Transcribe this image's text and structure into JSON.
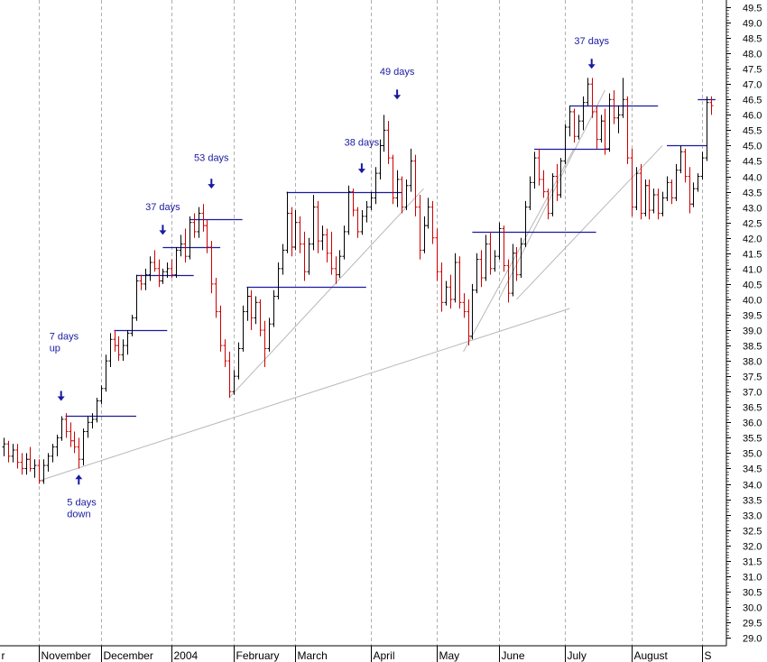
{
  "chart_data": {
    "type": "ohlc",
    "colors": {
      "up": "#000000",
      "down": "#cc0000",
      "level": "#1a1aa0",
      "trend": "#b8b8b8",
      "grid": "#b0b0b0",
      "annotation": "#1a1aa0"
    },
    "y_axis": {
      "position": "right",
      "range": [
        29.0,
        49.5
      ],
      "ticks": [
        "49.5",
        "49.0",
        "48.5",
        "48.0",
        "47.5",
        "47.0",
        "46.5",
        "46.0",
        "45.5",
        "45.0",
        "44.5",
        "44.0",
        "43.5",
        "43.0",
        "42.5",
        "42.0",
        "41.5",
        "41.0",
        "40.5",
        "40.0",
        "39.5",
        "39.0",
        "38.5",
        "38.0",
        "37.5",
        "37.0",
        "36.5",
        "36.0",
        "35.5",
        "35.0",
        "34.5",
        "34.0",
        "33.5",
        "33.0",
        "32.5",
        "32.0",
        "31.5",
        "31.0",
        "30.5",
        "30.0",
        "29.5",
        "29.0"
      ]
    },
    "x_axis": {
      "labels": [
        {
          "label": "r",
          "bar": -1
        },
        {
          "label": "November",
          "bar": 8
        },
        {
          "label": "December",
          "bar": 22
        },
        {
          "label": "2004",
          "bar": 38
        },
        {
          "label": "February",
          "bar": 52
        },
        {
          "label": "March",
          "bar": 66
        },
        {
          "label": "April",
          "bar": 83
        },
        {
          "label": "May",
          "bar": 98
        },
        {
          "label": "June",
          "bar": 112
        },
        {
          "label": "July",
          "bar": 127
        },
        {
          "label": "August",
          "bar": 142
        },
        {
          "label": "S",
          "bar": 158
        }
      ],
      "gridlines_at_bars": [
        8,
        22,
        38,
        52,
        66,
        83,
        98,
        112,
        127,
        142,
        158
      ]
    },
    "grid": true,
    "bars": [
      [
        35.2,
        35.5,
        34.9,
        35.3
      ],
      [
        35.3,
        35.4,
        34.7,
        34.9
      ],
      [
        34.9,
        35.3,
        34.7,
        35.1
      ],
      [
        35.1,
        35.3,
        34.5,
        34.7
      ],
      [
        34.7,
        35.0,
        34.3,
        34.5
      ],
      [
        34.5,
        35.0,
        34.3,
        34.8
      ],
      [
        34.8,
        35.2,
        34.4,
        34.5
      ],
      [
        34.5,
        34.8,
        34.2,
        34.6
      ],
      [
        34.6,
        34.8,
        34.0,
        34.1
      ],
      [
        34.1,
        34.8,
        34.0,
        34.6
      ],
      [
        34.6,
        35.0,
        34.4,
        34.9
      ],
      [
        34.9,
        35.3,
        34.7,
        35.2
      ],
      [
        35.2,
        35.6,
        34.9,
        35.5
      ],
      [
        35.5,
        36.2,
        35.4,
        36.1
      ],
      [
        36.1,
        36.3,
        35.5,
        35.7
      ],
      [
        35.7,
        36.0,
        35.2,
        35.4
      ],
      [
        35.4,
        35.7,
        35.0,
        35.2
      ],
      [
        35.2,
        35.5,
        34.5,
        34.8
      ],
      [
        34.8,
        35.8,
        34.6,
        35.7
      ],
      [
        35.7,
        36.2,
        35.5,
        36.0
      ],
      [
        36.0,
        36.3,
        35.8,
        36.1
      ],
      [
        36.1,
        36.8,
        36.0,
        36.7
      ],
      [
        36.7,
        37.2,
        36.6,
        37.1
      ],
      [
        37.1,
        38.2,
        37.0,
        38.0
      ],
      [
        38.0,
        38.9,
        37.8,
        38.7
      ],
      [
        38.7,
        39.0,
        38.3,
        38.5
      ],
      [
        38.5,
        38.8,
        38.0,
        38.2
      ],
      [
        38.2,
        38.7,
        38.0,
        38.5
      ],
      [
        38.5,
        39.0,
        38.2,
        38.9
      ],
      [
        38.9,
        39.5,
        38.8,
        39.4
      ],
      [
        39.4,
        40.8,
        39.3,
        40.6
      ],
      [
        40.6,
        40.8,
        40.3,
        40.5
      ],
      [
        40.5,
        41.0,
        40.3,
        40.8
      ],
      [
        40.8,
        41.4,
        40.6,
        41.2
      ],
      [
        41.2,
        41.6,
        40.9,
        41.0
      ],
      [
        41.0,
        41.3,
        40.4,
        40.6
      ],
      [
        40.6,
        41.0,
        40.5,
        40.9
      ],
      [
        40.9,
        41.2,
        40.7,
        41.0
      ],
      [
        41.0,
        41.3,
        40.7,
        40.8
      ],
      [
        40.8,
        41.7,
        40.7,
        41.6
      ],
      [
        41.6,
        42.1,
        41.4,
        41.8
      ],
      [
        41.8,
        42.3,
        41.2,
        41.4
      ],
      [
        41.4,
        42.7,
        41.3,
        42.5
      ],
      [
        42.5,
        42.8,
        42.0,
        42.2
      ],
      [
        42.2,
        43.0,
        42.0,
        42.8
      ],
      [
        42.8,
        43.1,
        42.2,
        42.4
      ],
      [
        42.4,
        42.6,
        41.5,
        41.7
      ],
      [
        41.7,
        41.9,
        40.2,
        40.5
      ],
      [
        40.5,
        40.7,
        39.4,
        39.6
      ],
      [
        39.6,
        39.8,
        38.3,
        38.5
      ],
      [
        38.5,
        38.7,
        37.8,
        38.0
      ],
      [
        38.0,
        38.3,
        36.8,
        37.0
      ],
      [
        37.0,
        37.7,
        36.9,
        37.5
      ],
      [
        37.5,
        38.6,
        37.4,
        38.4
      ],
      [
        38.4,
        39.8,
        38.3,
        39.6
      ],
      [
        39.6,
        40.4,
        39.3,
        40.1
      ],
      [
        40.1,
        40.3,
        39.0,
        39.4
      ],
      [
        39.4,
        40.1,
        39.2,
        39.9
      ],
      [
        39.9,
        40.0,
        38.8,
        39.0
      ],
      [
        39.0,
        39.3,
        37.8,
        38.4
      ],
      [
        38.4,
        39.4,
        38.3,
        39.2
      ],
      [
        39.2,
        40.3,
        39.1,
        40.1
      ],
      [
        40.1,
        41.2,
        40.0,
        41.0
      ],
      [
        41.0,
        41.8,
        40.8,
        41.6
      ],
      [
        41.6,
        43.5,
        41.5,
        42.8
      ],
      [
        42.8,
        43.0,
        41.4,
        41.7
      ],
      [
        41.7,
        42.9,
        41.6,
        42.5
      ],
      [
        42.5,
        42.7,
        41.5,
        41.8
      ],
      [
        41.8,
        42.2,
        40.6,
        40.9
      ],
      [
        40.9,
        42.0,
        40.8,
        41.8
      ],
      [
        41.8,
        43.4,
        41.6,
        43.0
      ],
      [
        43.0,
        43.2,
        41.5,
        41.9
      ],
      [
        41.9,
        42.4,
        41.6,
        42.1
      ],
      [
        42.1,
        42.3,
        41.2,
        41.5
      ],
      [
        41.5,
        42.2,
        40.8,
        41.0
      ],
      [
        41.0,
        41.4,
        40.5,
        40.8
      ],
      [
        40.8,
        41.6,
        40.7,
        41.4
      ],
      [
        41.4,
        42.4,
        41.3,
        42.2
      ],
      [
        42.2,
        43.7,
        42.1,
        43.5
      ],
      [
        43.5,
        43.6,
        42.7,
        42.9
      ],
      [
        42.9,
        43.0,
        42.0,
        42.2
      ],
      [
        42.2,
        42.9,
        42.1,
        42.7
      ],
      [
        42.7,
        43.2,
        42.5,
        43.0
      ],
      [
        43.0,
        43.5,
        42.9,
        43.3
      ],
      [
        43.3,
        44.3,
        43.1,
        44.1
      ],
      [
        44.1,
        45.2,
        43.9,
        45.0
      ],
      [
        45.0,
        46.0,
        44.8,
        45.5
      ],
      [
        45.5,
        45.8,
        44.4,
        44.6
      ],
      [
        44.6,
        44.7,
        43.1,
        43.3
      ],
      [
        43.3,
        44.2,
        43.0,
        43.9
      ],
      [
        43.9,
        44.0,
        42.8,
        43.0
      ],
      [
        43.0,
        43.9,
        42.9,
        43.7
      ],
      [
        43.7,
        44.9,
        43.5,
        44.5
      ],
      [
        44.5,
        44.7,
        42.7,
        43.0
      ],
      [
        43.0,
        43.4,
        41.3,
        41.6
      ],
      [
        41.6,
        42.7,
        41.5,
        42.4
      ],
      [
        42.4,
        43.3,
        42.3,
        43.0
      ],
      [
        43.0,
        43.2,
        41.8,
        42.0
      ],
      [
        42.0,
        42.3,
        40.6,
        40.9
      ],
      [
        40.9,
        41.2,
        39.6,
        39.9
      ],
      [
        39.9,
        40.6,
        39.8,
        40.4
      ],
      [
        40.4,
        40.8,
        39.7,
        40.0
      ],
      [
        40.0,
        41.5,
        39.9,
        41.2
      ],
      [
        41.2,
        41.4,
        39.7,
        39.9
      ],
      [
        39.9,
        40.2,
        39.4,
        39.6
      ],
      [
        39.6,
        40.0,
        38.5,
        38.8
      ],
      [
        38.8,
        40.5,
        38.7,
        40.3
      ],
      [
        40.3,
        41.5,
        40.2,
        41.3
      ],
      [
        41.3,
        41.6,
        40.4,
        40.7
      ],
      [
        40.7,
        42.1,
        40.6,
        41.8
      ],
      [
        41.8,
        42.2,
        40.8,
        41.0
      ],
      [
        41.0,
        41.6,
        40.9,
        41.4
      ],
      [
        41.4,
        42.5,
        41.3,
        42.3
      ],
      [
        42.3,
        42.4,
        40.9,
        41.1
      ],
      [
        41.1,
        41.3,
        39.9,
        40.2
      ],
      [
        40.2,
        41.8,
        40.1,
        41.5
      ],
      [
        41.5,
        41.7,
        40.6,
        40.8
      ],
      [
        40.8,
        42.0,
        40.7,
        41.8
      ],
      [
        41.8,
        43.2,
        41.7,
        43.0
      ],
      [
        43.0,
        44.0,
        42.9,
        43.8
      ],
      [
        43.8,
        44.8,
        43.6,
        44.6
      ],
      [
        44.6,
        44.9,
        43.7,
        43.9
      ],
      [
        43.9,
        44.2,
        43.3,
        43.5
      ],
      [
        43.5,
        43.6,
        42.6,
        42.8
      ],
      [
        42.8,
        44.1,
        42.7,
        44.0
      ],
      [
        44.0,
        44.4,
        43.2,
        43.4
      ],
      [
        43.4,
        44.6,
        43.3,
        44.5
      ],
      [
        44.5,
        45.7,
        44.4,
        45.6
      ],
      [
        45.6,
        46.3,
        45.3,
        46.1
      ],
      [
        46.1,
        46.2,
        45.1,
        45.3
      ],
      [
        45.3,
        46.0,
        45.2,
        45.8
      ],
      [
        45.8,
        46.6,
        45.5,
        46.4
      ],
      [
        46.4,
        47.2,
        46.3,
        47.0
      ],
      [
        47.0,
        47.2,
        45.9,
        46.1
      ],
      [
        46.1,
        46.3,
        44.9,
        45.2
      ],
      [
        45.2,
        46.0,
        45.1,
        45.8
      ],
      [
        45.8,
        46.2,
        44.7,
        44.9
      ],
      [
        44.9,
        46.7,
        44.8,
        46.5
      ],
      [
        46.5,
        46.8,
        45.7,
        45.9
      ],
      [
        45.9,
        46.3,
        45.4,
        46.0
      ],
      [
        46.0,
        47.2,
        45.9,
        46.5
      ],
      [
        46.5,
        46.6,
        44.4,
        44.6
      ],
      [
        44.6,
        44.9,
        42.7,
        43.0
      ],
      [
        43.0,
        44.3,
        42.9,
        44.1
      ],
      [
        44.1,
        44.4,
        42.6,
        42.8
      ],
      [
        42.8,
        43.9,
        42.7,
        43.7
      ],
      [
        43.7,
        43.9,
        42.6,
        42.9
      ],
      [
        42.9,
        43.6,
        42.8,
        43.4
      ],
      [
        43.4,
        43.6,
        42.6,
        42.8
      ],
      [
        42.8,
        43.5,
        42.7,
        43.3
      ],
      [
        43.3,
        44.0,
        43.2,
        43.8
      ],
      [
        43.8,
        43.9,
        43.1,
        43.3
      ],
      [
        43.3,
        44.4,
        43.2,
        44.2
      ],
      [
        44.2,
        45.0,
        44.1,
        44.8
      ],
      [
        44.8,
        44.9,
        43.8,
        44.0
      ],
      [
        44.0,
        44.3,
        42.8,
        43.1
      ],
      [
        43.1,
        43.8,
        43.0,
        43.6
      ],
      [
        43.6,
        44.1,
        43.5,
        44.0
      ],
      [
        44.0,
        44.8,
        43.9,
        44.6
      ],
      [
        44.6,
        46.6,
        44.5,
        46.4
      ],
      [
        46.4,
        46.6,
        46.0,
        46.3
      ]
    ],
    "levels": [
      {
        "from_bar": 14,
        "to_bar": 30,
        "price": 36.2
      },
      {
        "from_bar": 25,
        "to_bar": 37,
        "price": 39.0
      },
      {
        "from_bar": 30,
        "to_bar": 43,
        "price": 40.8
      },
      {
        "from_bar": 36,
        "to_bar": 49,
        "price": 41.7
      },
      {
        "from_bar": 42,
        "to_bar": 54,
        "price": 42.6
      },
      {
        "from_bar": 55,
        "to_bar": 82,
        "price": 40.4
      },
      {
        "from_bar": 64,
        "to_bar": 90,
        "price": 43.5
      },
      {
        "from_bar": 106,
        "to_bar": 134,
        "price": 42.2
      },
      {
        "from_bar": 120,
        "to_bar": 137,
        "price": 44.9
      },
      {
        "from_bar": 128,
        "to_bar": 148,
        "price": 46.3
      },
      {
        "from_bar": 150,
        "to_bar": 159,
        "price": 45.0
      },
      {
        "from_bar": 157,
        "to_bar": 161,
        "price": 46.5
      }
    ],
    "trendlines": [
      {
        "from": [
          8,
          34.1
        ],
        "to": [
          128,
          39.7
        ]
      },
      {
        "from": [
          104,
          38.3
        ],
        "to": [
          129,
          44.9
        ]
      },
      {
        "from": [
          51,
          36.8
        ],
        "to": [
          95,
          43.6
        ]
      },
      {
        "from": [
          112,
          40.0
        ],
        "to": [
          136,
          46.8
        ]
      },
      {
        "from": [
          116,
          40.0
        ],
        "to": [
          149,
          45.0
        ]
      }
    ],
    "annotations": [
      {
        "text": [
          "7 days",
          "up"
        ],
        "bar": 13,
        "price": 38.7,
        "arrow": "down",
        "arrow_price": 36.7
      },
      {
        "text": [
          "5 days",
          "down"
        ],
        "bar": 17,
        "price": 33.3,
        "arrow": "up",
        "arrow_price": 34.3
      },
      {
        "text": [
          "37 days"
        ],
        "bar": 36,
        "price": 42.9,
        "arrow": "down",
        "arrow_price": 42.1
      },
      {
        "text": [
          "53 days"
        ],
        "bar": 47,
        "price": 44.5,
        "arrow": "down",
        "arrow_price": 43.6
      },
      {
        "text": [
          "38 days"
        ],
        "bar": 81,
        "price": 45.0,
        "arrow": "down",
        "arrow_price": 44.1
      },
      {
        "text": [
          "49 days"
        ],
        "bar": 89,
        "price": 47.3,
        "arrow": "down",
        "arrow_price": 46.5
      },
      {
        "text": [
          "37 days"
        ],
        "bar": 133,
        "price": 48.3,
        "arrow": "down",
        "arrow_price": 47.5
      }
    ]
  }
}
